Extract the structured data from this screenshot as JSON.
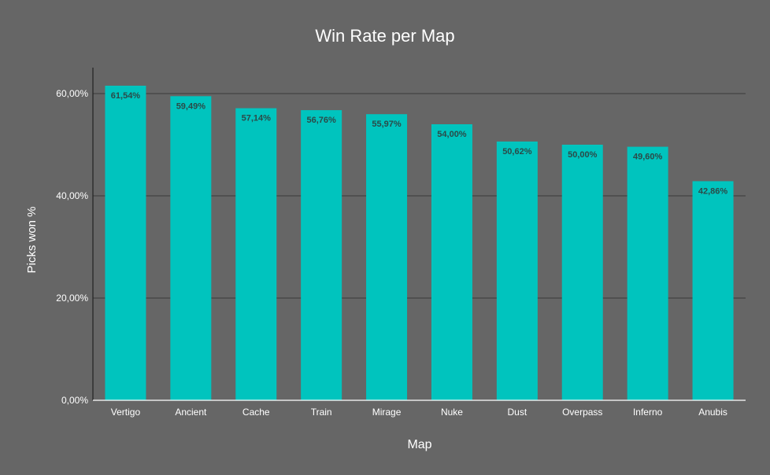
{
  "chart_data": {
    "type": "bar",
    "title": "Win Rate per Map",
    "xlabel": "Map",
    "ylabel": "Picks won %",
    "categories": [
      "Vertigo",
      "Ancient",
      "Cache",
      "Train",
      "Mirage",
      "Nuke",
      "Dust",
      "Overpass",
      "Inferno",
      "Anubis"
    ],
    "values": [
      61.54,
      59.49,
      57.14,
      56.76,
      55.97,
      54.0,
      50.62,
      50.0,
      49.6,
      42.86
    ],
    "value_labels": [
      "61,54%",
      "59,49%",
      "57,14%",
      "56,76%",
      "55,97%",
      "54,00%",
      "50,62%",
      "50,00%",
      "49,60%",
      "42,86%"
    ],
    "y_ticks": [
      0,
      20,
      40,
      60
    ],
    "y_tick_labels": [
      "0,00%",
      "20,00%",
      "40,00%",
      "60,00%"
    ],
    "ylim": [
      0,
      60
    ],
    "grid": true,
    "legend": "none",
    "colors": {
      "background": "#666666",
      "bar": "#00C4BE",
      "grid": "#3a3a3a",
      "axis": "#222222",
      "text": "#ffffff",
      "value_label": "#2b4a48"
    }
  }
}
